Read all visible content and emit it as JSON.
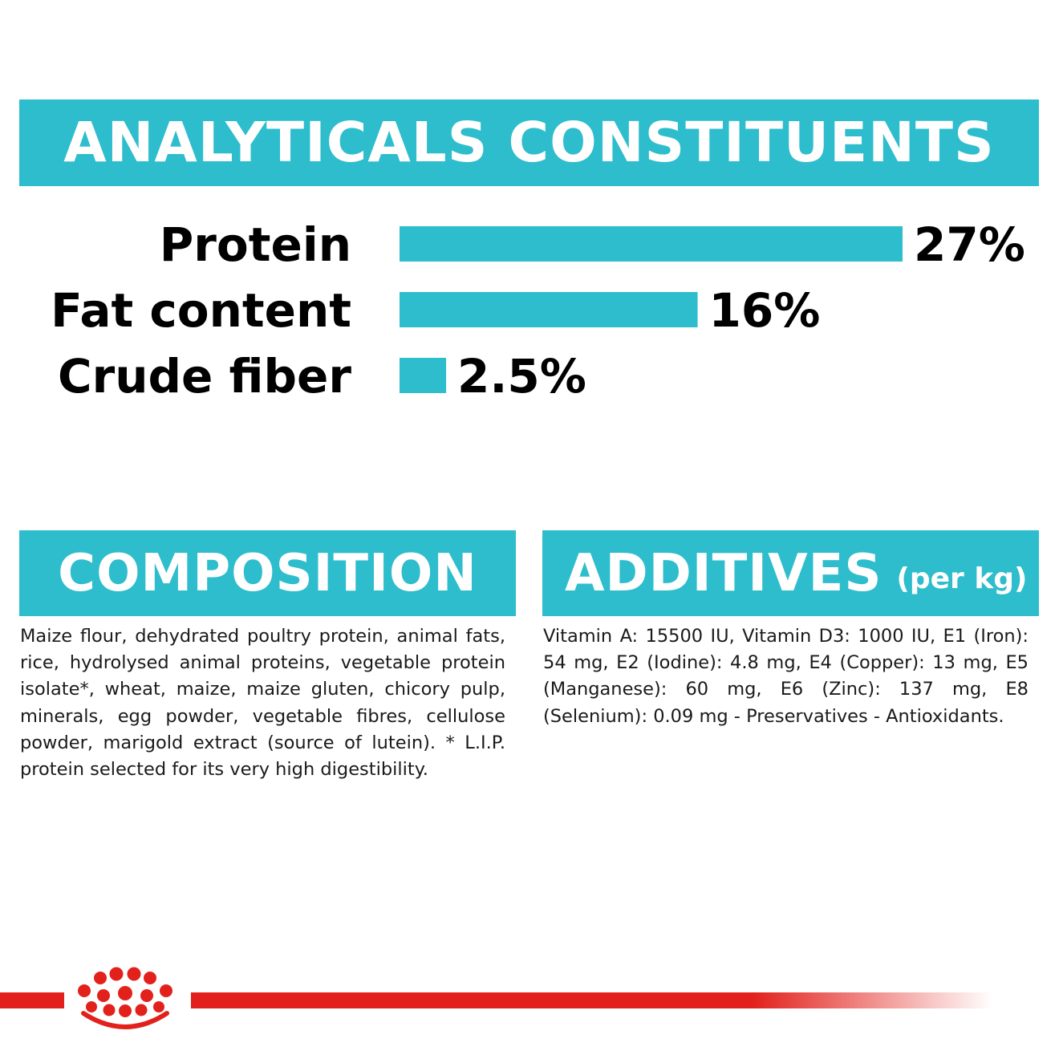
{
  "header": {
    "title": "ANALYTICALS CONSTITUENTS"
  },
  "chart_data": {
    "type": "bar",
    "orientation": "horizontal",
    "categories": [
      "Protein",
      "Fat content",
      "Crude fiber"
    ],
    "values": [
      27,
      16,
      2.5
    ],
    "value_labels": [
      "27%",
      "16%",
      "2.5%"
    ],
    "title": "ANALYTICALS CONSTITUENTS",
    "xlabel": "",
    "ylabel": "",
    "xlim": [
      0,
      27
    ],
    "grid": false,
    "bar_color": "#2ebdcc"
  },
  "composition": {
    "title": "COMPOSITION",
    "text": "Maize flour, dehydrated poultry protein, animal fats, rice, hydrolysed animal proteins, vegetable protein isolate*, wheat, maize, maize gluten, chicory pulp, minerals, egg powder, vegetable fibres, cellulose powder, marigold extract (source of lutein). * L.I.P. protein selected for its very high digestibility."
  },
  "additives": {
    "title": "ADDITIVES",
    "unit": "(per kg)",
    "text": "Vitamin A: 15500 IU, Vitamin D3: 1000 IU, E1 (Iron): 54 mg, E2 (Iodine): 4.8 mg, E4 (Copper): 13 mg, E5 (Manganese): 60 mg, E6 (Zinc): 137 mg, E8 (Selenium): 0.09 mg - Preservatives - Antioxidants."
  },
  "colors": {
    "accent": "#2ebdcc",
    "brand_red": "#e2211c",
    "text": "#000000"
  },
  "footer": {
    "logo": "crown-icon"
  }
}
